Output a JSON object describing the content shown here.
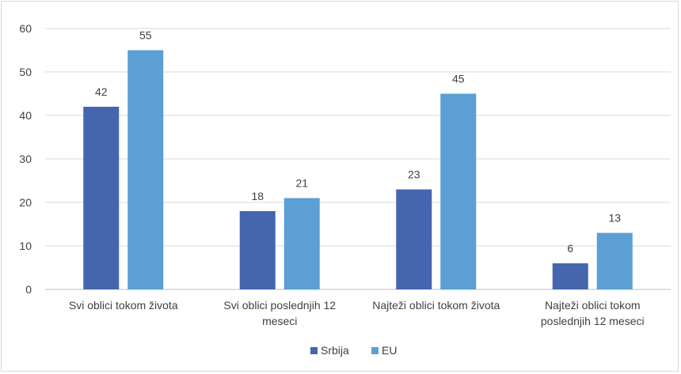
{
  "chart_data": {
    "type": "bar",
    "title": "",
    "xlabel": "",
    "ylabel": "",
    "ylim": [
      0,
      60
    ],
    "yticks": [
      0,
      10,
      20,
      30,
      40,
      50,
      60
    ],
    "grid": true,
    "legend_position": "bottom",
    "categories": [
      [
        "Svi oblici tokom života"
      ],
      [
        "Svi oblici poslednjih 12",
        "meseci"
      ],
      [
        "Najteži oblici tokom života"
      ],
      [
        "Najteži oblici tokom",
        "poslednjih 12 meseci"
      ]
    ],
    "series": [
      {
        "name": "Srbija",
        "color": "#4565ae",
        "values": [
          42,
          18,
          23,
          6
        ]
      },
      {
        "name": "EU",
        "color": "#5b9fd4",
        "values": [
          55,
          21,
          45,
          13
        ]
      }
    ]
  }
}
